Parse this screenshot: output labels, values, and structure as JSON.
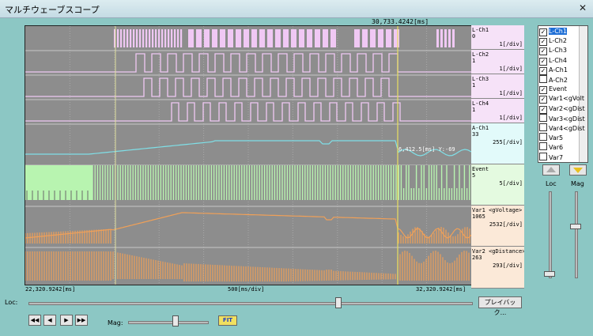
{
  "window": {
    "title": "マルチウェーブスコープ",
    "close": "✕"
  },
  "cursor": {
    "time_label": "30,733.4242[ms]",
    "readout": "6,412.5[ms] Y:-69"
  },
  "axis": {
    "start": "22,320.9242[ms]",
    "center": "500[ms/div]",
    "end": "32,320.9242[ms]"
  },
  "channels": [
    {
      "name": "L-Ch1",
      "value": "0",
      "div": "1[/div]",
      "bg": "#f6e2f8"
    },
    {
      "name": "L-Ch2",
      "value": "1",
      "div": "1[/div]",
      "bg": "#f6e2f8"
    },
    {
      "name": "L-Ch3",
      "value": "1",
      "div": "1[/div]",
      "bg": "#f6e2f8"
    },
    {
      "name": "L-Ch4",
      "value": "1",
      "div": "1[/div]",
      "bg": "#f6e2f8"
    },
    {
      "name": "A-Ch1",
      "value": "33",
      "div": "255[/div]",
      "bg": "#e2fafa"
    },
    {
      "name": "Event",
      "value": "5",
      "div": "5[/div]",
      "bg": "#e4fae0"
    },
    {
      "name": "Var1 <gVoltage>",
      "value": "1065",
      "div": "2532[/div]",
      "bg": "#fbe9d8"
    },
    {
      "name": "Var2 <gDistance>",
      "value": "263",
      "div": "293[/div]",
      "bg": "#fbe9d8"
    }
  ],
  "checklist": [
    {
      "label": "L-Ch1",
      "checked": true,
      "selected": true
    },
    {
      "label": "L-Ch2",
      "checked": true
    },
    {
      "label": "L-Ch3",
      "checked": true
    },
    {
      "label": "L-Ch4",
      "checked": true
    },
    {
      "label": "A-Ch1",
      "checked": true
    },
    {
      "label": "A-Ch2",
      "checked": false
    },
    {
      "label": "Event",
      "checked": true
    },
    {
      "label": "Var1<gVolt",
      "checked": true
    },
    {
      "label": "Var2<gDist",
      "checked": true
    },
    {
      "label": "Var3<gDist",
      "checked": false
    },
    {
      "label": "Var4<gDist",
      "checked": false
    },
    {
      "label": "Var5",
      "checked": false
    },
    {
      "label": "Var6",
      "checked": false
    },
    {
      "label": "Var7",
      "checked": false
    }
  ],
  "controls": {
    "loc_label": "Loc:",
    "mag_label": "Mag:",
    "playback": "プレイバック...",
    "side_loc": "Loc",
    "side_mag": "Mag",
    "transport": [
      "◀◀",
      "◀",
      "▶",
      "▶▶"
    ],
    "fit": "FIT",
    "loc_level": 0.7,
    "mag_level": 0.6
  },
  "colors": {
    "logic": "#f0c8f4",
    "analog": "#7fe0e8",
    "event": "#b8f4b0",
    "var": "#f0a058",
    "cursor": "#e8e060",
    "bg": "#8d8d8d"
  }
}
